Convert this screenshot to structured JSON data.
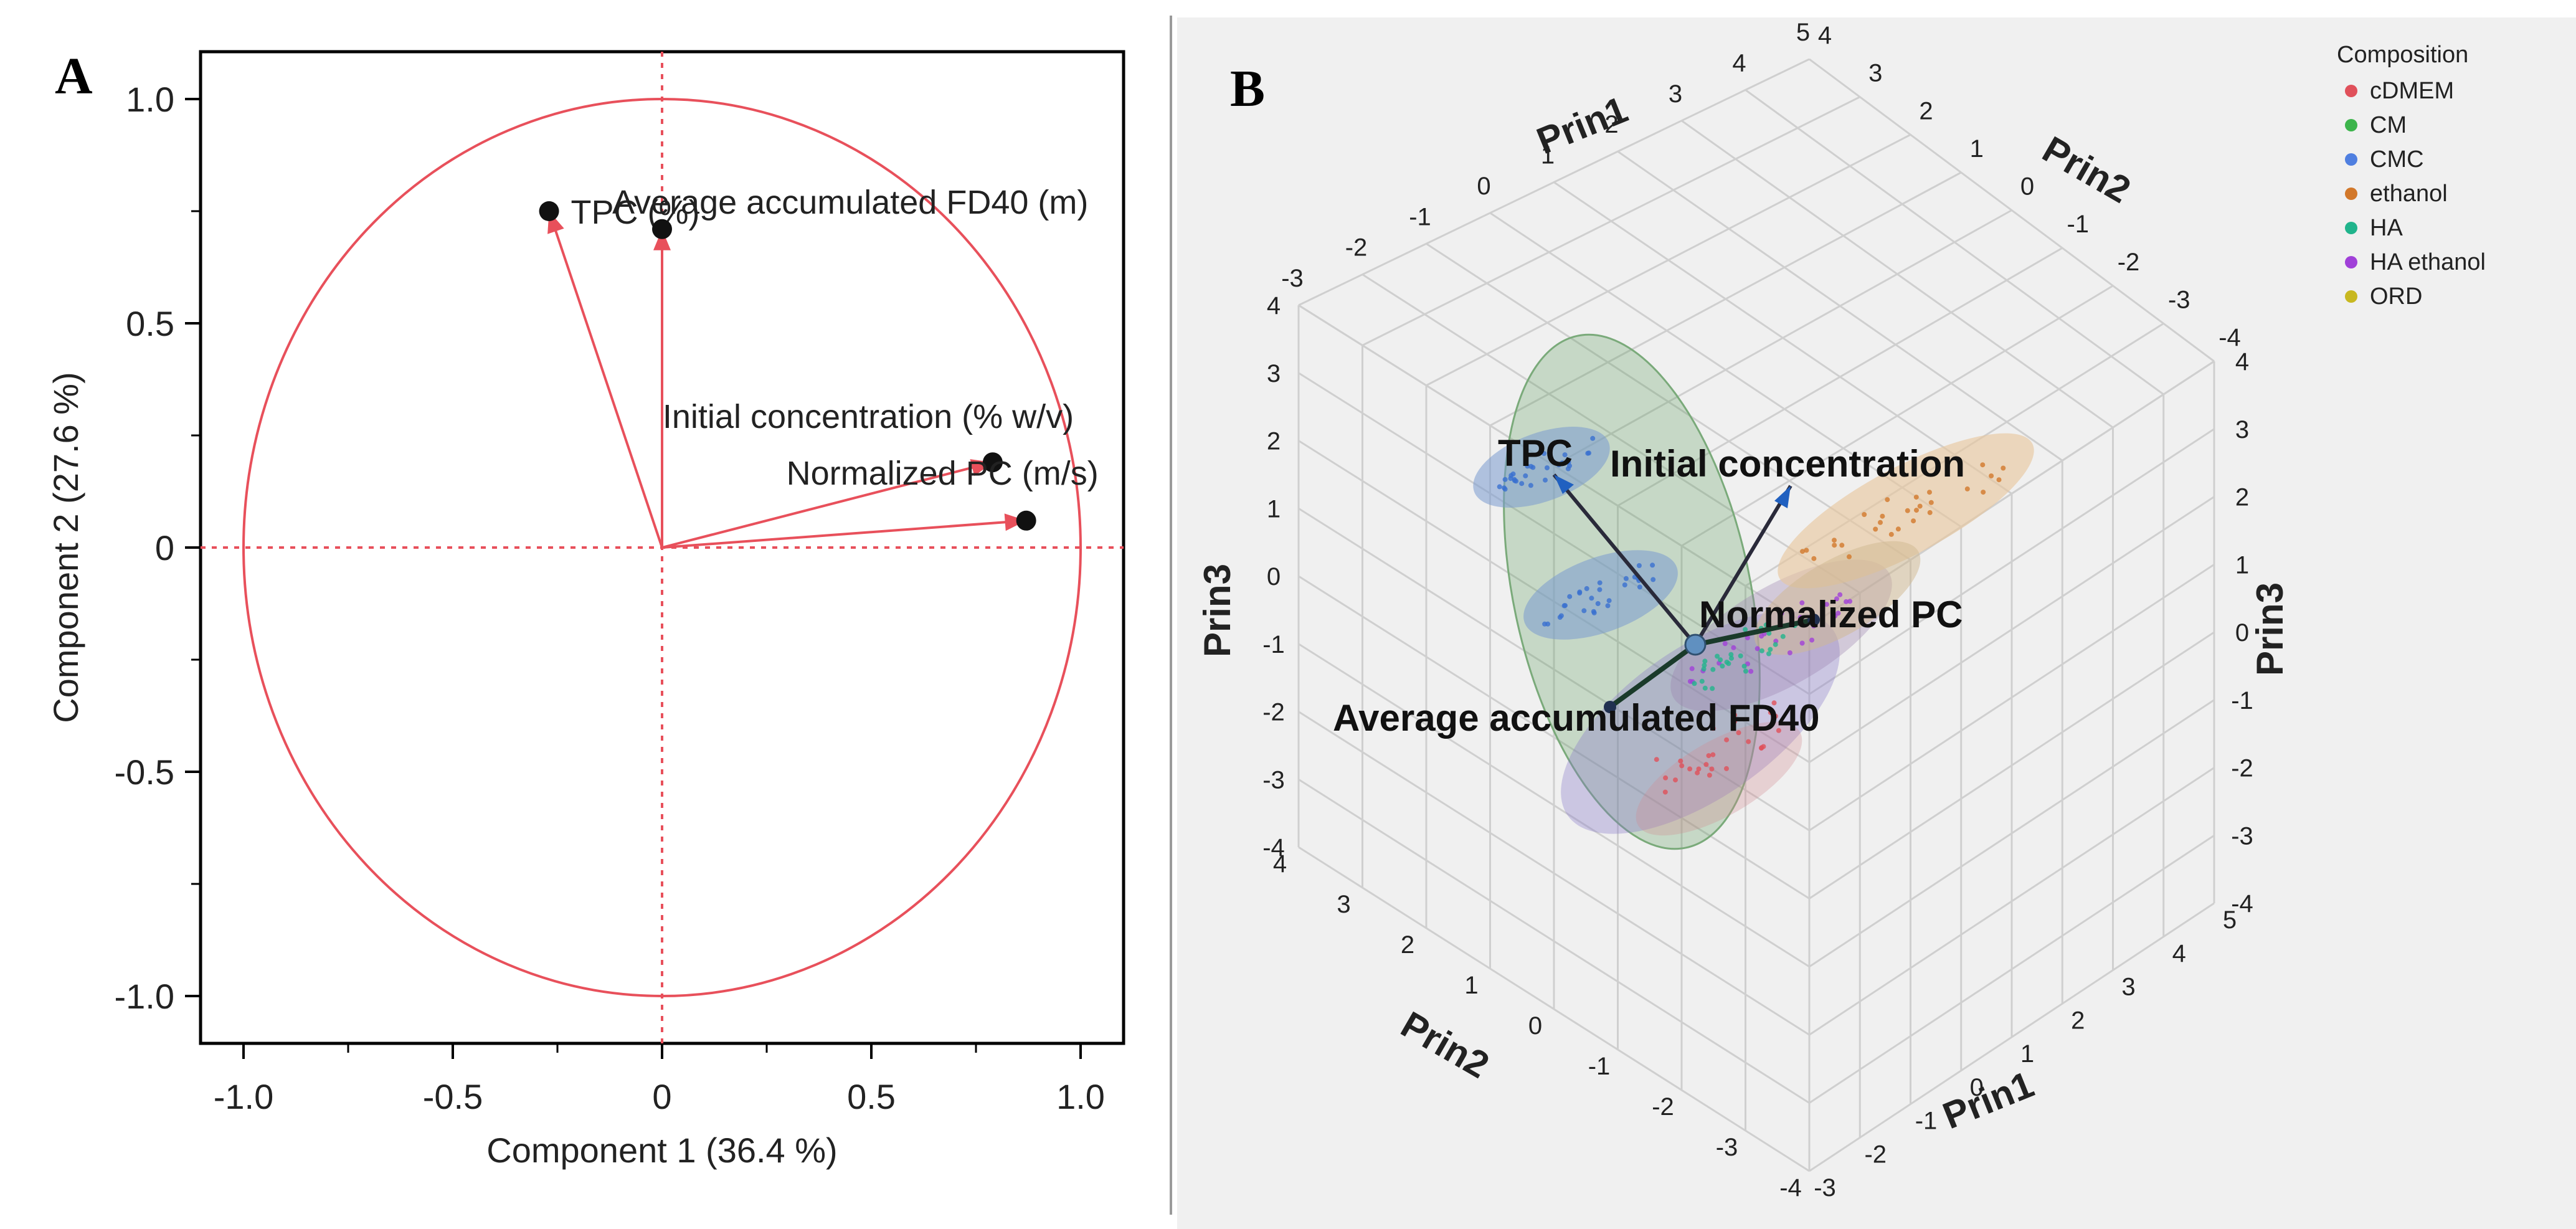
{
  "chart_data": [
    {
      "type": "scatter",
      "subtype": "loading-plot",
      "panel": "A",
      "xlabel": "Component 1  (36.4 %)",
      "ylabel": "Component 2  (27.6 %)",
      "xlim": [
        -1.1,
        1.1
      ],
      "ylim": [
        -1.1,
        1.1
      ],
      "xticks": [
        -1.0,
        -0.5,
        0,
        0.5,
        1.0
      ],
      "xtick_labels": [
        "-1.0",
        "-0.5",
        "0",
        "0.5",
        "1.0"
      ],
      "yticks": [
        -1.0,
        -0.5,
        0,
        0.5,
        1.0
      ],
      "ytick_labels": [
        "-1.0",
        "-0.5",
        "0",
        "0.5",
        "1.0"
      ],
      "unit_circle": true,
      "reference_lines": [
        0,
        0
      ],
      "loadings": [
        {
          "name": "TPC (%)",
          "x": -0.27,
          "y": 0.75
        },
        {
          "name": "Average accumulated FD40 (m)",
          "x": 0.0,
          "y": 0.71
        },
        {
          "name": "Initial concentration (% w/v)",
          "x": 0.79,
          "y": 0.19
        },
        {
          "name": "Normalized PC (m/s)",
          "x": 0.87,
          "y": 0.06
        }
      ],
      "color": "#e8505b"
    },
    {
      "type": "scatter",
      "subtype": "3d-biplot",
      "panel": "B",
      "axes": [
        "Prin1",
        "Prin2",
        "Prin3"
      ],
      "prin1_ticks": [
        "-3",
        "-2",
        "-1",
        "0",
        "1",
        "2",
        "3",
        "4",
        "5"
      ],
      "prin2_ticks": [
        "-4",
        "-3",
        "-2",
        "-1",
        "0",
        "1",
        "2",
        "3",
        "4"
      ],
      "prin3_ticks": [
        "-4",
        "-3",
        "-2",
        "-1",
        "0",
        "1",
        "2",
        "3",
        "4"
      ],
      "vectors": [
        {
          "name": "TPC"
        },
        {
          "name": "Initial concentration"
        },
        {
          "name": "Normalized PC"
        },
        {
          "name": "Average accumulated FD40"
        }
      ],
      "legend": {
        "title": "Composition",
        "items": [
          {
            "label": "cDMEM",
            "color": "#e0505a"
          },
          {
            "label": "CM",
            "color": "#3cb44b"
          },
          {
            "label": "CMC",
            "color": "#4f7fe0"
          },
          {
            "label": "ethanol",
            "color": "#d2782a"
          },
          {
            "label": "HA",
            "color": "#20b48c"
          },
          {
            "label": "HA ethanol",
            "color": "#a040d8"
          },
          {
            "label": "ORD",
            "color": "#c8b820"
          }
        ]
      }
    }
  ]
}
